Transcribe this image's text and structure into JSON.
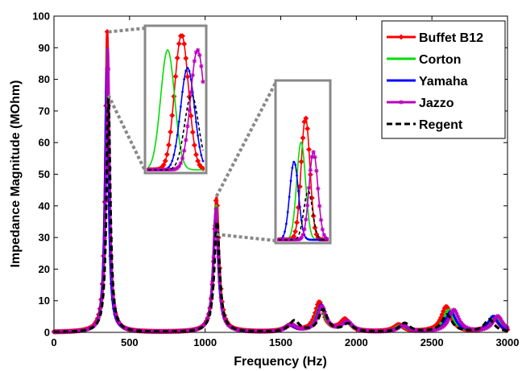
{
  "chart_data": {
    "type": "line",
    "xlabel": "Frequency (Hz)",
    "ylabel": "Impedance Magnitude (MOhm)",
    "xlim": [
      0,
      3000
    ],
    "ylim": [
      0,
      100
    ],
    "xticks": [
      0,
      500,
      1000,
      1500,
      2000,
      2500,
      3000
    ],
    "yticks": [
      0,
      10,
      20,
      30,
      40,
      50,
      60,
      70,
      80,
      90,
      100
    ],
    "x_tick_labels": [
      "0",
      "500",
      "1000",
      "1500",
      "2000",
      "2500",
      "3000"
    ],
    "y_tick_labels": [
      "0",
      "10",
      "20",
      "30",
      "40",
      "50",
      "60",
      "70",
      "80",
      "90",
      "100"
    ],
    "grid": false,
    "legend_position": "top-right",
    "series": [
      {
        "name": "Buffet B12",
        "color": "#ff0000",
        "line_style": "solid",
        "marker": "diamond",
        "peaks": [
          {
            "f": 352,
            "a": 95,
            "w": 14
          },
          {
            "f": 1075,
            "a": 42.5,
            "w": 20
          },
          {
            "f": 1562,
            "a": 2.0,
            "w": 40
          },
          {
            "f": 1755,
            "a": 9.3,
            "w": 35
          },
          {
            "f": 1925,
            "a": 3.8,
            "w": 40
          },
          {
            "f": 2280,
            "a": 2.2,
            "w": 40
          },
          {
            "f": 2595,
            "a": 8.0,
            "w": 40
          },
          {
            "f": 2910,
            "a": 4.6,
            "w": 40
          }
        ]
      },
      {
        "name": "Corton",
        "color": "#00dd00",
        "line_style": "solid",
        "marker": "none",
        "peaks": [
          {
            "f": 354,
            "a": 90,
            "w": 14
          },
          {
            "f": 1073,
            "a": 40,
            "w": 20
          },
          {
            "f": 1560,
            "a": 2.0,
            "w": 40
          },
          {
            "f": 1762,
            "a": 8.0,
            "w": 35
          },
          {
            "f": 1930,
            "a": 3.0,
            "w": 40
          },
          {
            "f": 2290,
            "a": 2.0,
            "w": 40
          },
          {
            "f": 2610,
            "a": 7.0,
            "w": 40
          },
          {
            "f": 2920,
            "a": 4.5,
            "w": 40
          }
        ]
      },
      {
        "name": "Yamaha",
        "color": "#0000ff",
        "line_style": "solid",
        "marker": "dot",
        "peaks": [
          {
            "f": 350,
            "a": 84,
            "w": 14
          },
          {
            "f": 1070,
            "a": 38,
            "w": 20
          },
          {
            "f": 1555,
            "a": 2.0,
            "w": 40
          },
          {
            "f": 1768,
            "a": 8.5,
            "w": 35
          },
          {
            "f": 1935,
            "a": 3.2,
            "w": 40
          },
          {
            "f": 2300,
            "a": 2.0,
            "w": 40
          },
          {
            "f": 2625,
            "a": 6.5,
            "w": 40
          },
          {
            "f": 2905,
            "a": 5.0,
            "w": 40
          }
        ]
      },
      {
        "name": "Jazzo",
        "color": "#bb00bb",
        "line_style": "solid",
        "marker": "star",
        "peaks": [
          {
            "f": 356,
            "a": 90,
            "w": 14
          },
          {
            "f": 1072,
            "a": 39,
            "w": 20
          },
          {
            "f": 1570,
            "a": 2.2,
            "w": 40
          },
          {
            "f": 1772,
            "a": 8.0,
            "w": 35
          },
          {
            "f": 1940,
            "a": 3.2,
            "w": 40
          },
          {
            "f": 2310,
            "a": 2.0,
            "w": 40
          },
          {
            "f": 2645,
            "a": 7.0,
            "w": 40
          },
          {
            "f": 2935,
            "a": 5.0,
            "w": 40
          }
        ]
      },
      {
        "name": "Regent",
        "color": "#000000",
        "line_style": "dashed",
        "marker": "none",
        "peaks": [
          {
            "f": 360,
            "a": 75,
            "w": 15
          },
          {
            "f": 1078,
            "a": 35,
            "w": 21
          },
          {
            "f": 1590,
            "a": 3.5,
            "w": 40
          },
          {
            "f": 1780,
            "a": 7.0,
            "w": 35
          },
          {
            "f": 1945,
            "a": 2.5,
            "w": 40
          },
          {
            "f": 2320,
            "a": 2.8,
            "w": 40
          },
          {
            "f": 2600,
            "a": 5.5,
            "w": 40
          },
          {
            "f": 2880,
            "a": 4.0,
            "w": 40
          }
        ]
      }
    ],
    "insets": [
      {
        "name": "zoom-first-peak",
        "x_range": [
          330,
          385
        ],
        "y_range": [
          50,
          97
        ],
        "source_point": [
          360,
          95
        ],
        "source_point_low": [
          360,
          75
        ]
      },
      {
        "name": "zoom-second-peak",
        "x_range": [
          1045,
          1100
        ],
        "y_range": [
          30,
          46
        ],
        "source_point": [
          1075,
          43
        ],
        "source_point_low": [
          1075,
          31
        ]
      }
    ]
  }
}
